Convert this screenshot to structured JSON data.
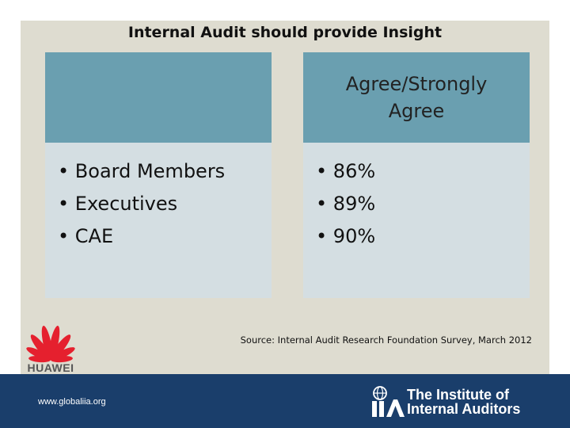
{
  "slide": {
    "title": "Internal Audit should provide Insight"
  },
  "table": {
    "header_left": "",
    "header_right": "Agree/Strongly Agree",
    "rows_left": [
      "Board Members",
      "Executives",
      "CAE"
    ],
    "rows_right": [
      "86%",
      "89%",
      "90%"
    ]
  },
  "source": "Source: Internal Audit Research Foundation Survey, March 2012",
  "logos": {
    "huawei": "HUAWEI",
    "iia_line1": "The Institute of",
    "iia_line2": "Internal Auditors"
  },
  "footer": {
    "url": "www.globaliia.org"
  },
  "colors": {
    "panel": "#dedcd0",
    "header_cell": "#6a9fb0",
    "body_cell": "#d4dee2",
    "footer": "#1a3e6b",
    "huawei_red": "#e5202e"
  }
}
